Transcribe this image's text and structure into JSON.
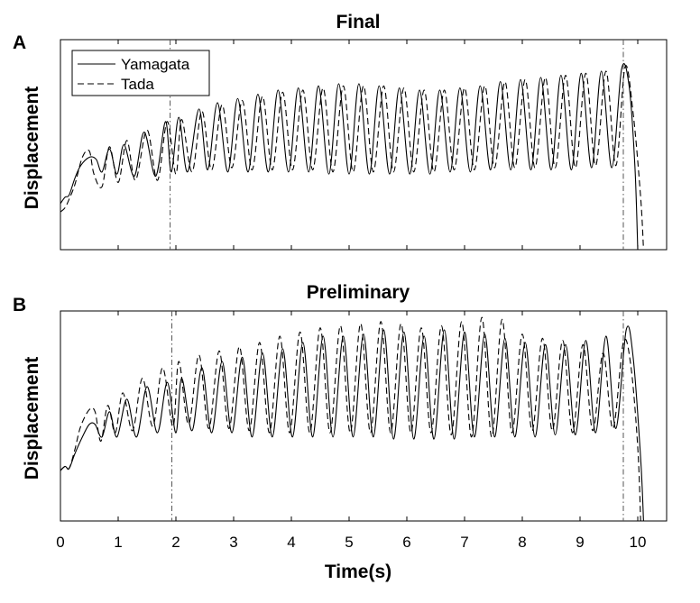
{
  "figure": {
    "xlabel": "Time(s)",
    "xticks": [
      "0",
      "1",
      "2",
      "3",
      "4",
      "5",
      "6",
      "7",
      "8",
      "9",
      "10"
    ]
  },
  "chart_data": [
    {
      "type": "line",
      "panel": "A",
      "title": "Final",
      "ylabel": "Displacement",
      "xlabel": "Time(s)",
      "xlim": [
        0,
        10.5
      ],
      "ylim": [
        0,
        1
      ],
      "vlines": [
        1.9,
        9.75
      ],
      "legend": {
        "position": "top-left",
        "entries": [
          "Yamagata",
          "Tada"
        ]
      },
      "series": [
        {
          "name": "Yamagata",
          "style": "solid",
          "x": [
            0.0,
            0.08,
            0.15,
            0.25,
            0.35,
            0.5,
            0.62,
            0.72,
            0.85,
            0.98,
            1.1,
            1.28,
            1.45,
            1.65,
            1.82,
            1.92,
            2.05,
            2.2,
            2.4,
            2.55,
            2.72,
            2.9,
            3.07,
            3.25,
            3.42,
            3.6,
            3.77,
            3.95,
            4.12,
            4.3,
            4.47,
            4.65,
            4.82,
            5.0,
            5.17,
            5.35,
            5.52,
            5.7,
            5.87,
            6.05,
            6.22,
            6.4,
            6.57,
            6.75,
            6.92,
            7.1,
            7.27,
            7.45,
            7.62,
            7.8,
            7.97,
            8.15,
            8.32,
            8.5,
            8.67,
            8.85,
            9.02,
            9.2,
            9.37,
            9.55,
            9.72,
            9.85,
            9.95,
            10.0
          ],
          "y": [
            0.22,
            0.25,
            0.26,
            0.34,
            0.4,
            0.44,
            0.43,
            0.37,
            0.48,
            0.36,
            0.5,
            0.35,
            0.56,
            0.35,
            0.61,
            0.37,
            0.63,
            0.37,
            0.67,
            0.38,
            0.7,
            0.37,
            0.72,
            0.37,
            0.74,
            0.37,
            0.76,
            0.37,
            0.77,
            0.37,
            0.78,
            0.36,
            0.79,
            0.36,
            0.79,
            0.36,
            0.78,
            0.36,
            0.77,
            0.36,
            0.76,
            0.36,
            0.76,
            0.37,
            0.77,
            0.37,
            0.78,
            0.38,
            0.8,
            0.38,
            0.81,
            0.38,
            0.82,
            0.38,
            0.83,
            0.38,
            0.84,
            0.39,
            0.85,
            0.39,
            0.86,
            0.78,
            0.4,
            0.0
          ]
        },
        {
          "name": "Tada",
          "style": "dashed",
          "x": [
            0.0,
            0.08,
            0.15,
            0.25,
            0.38,
            0.5,
            0.58,
            0.72,
            0.85,
            1.0,
            1.15,
            1.3,
            1.5,
            1.68,
            1.85,
            2.0,
            2.1,
            2.28,
            2.45,
            2.62,
            2.8,
            2.97,
            3.15,
            3.32,
            3.5,
            3.67,
            3.85,
            4.02,
            4.2,
            4.37,
            4.55,
            4.72,
            4.9,
            5.07,
            5.25,
            5.42,
            5.6,
            5.77,
            5.95,
            6.12,
            6.3,
            6.47,
            6.65,
            6.82,
            7.0,
            7.17,
            7.35,
            7.52,
            7.7,
            7.87,
            8.05,
            8.22,
            8.4,
            8.57,
            8.75,
            8.92,
            9.1,
            9.27,
            9.45,
            9.62,
            9.78,
            9.92,
            10.05,
            10.1
          ],
          "y": [
            0.18,
            0.2,
            0.24,
            0.31,
            0.44,
            0.47,
            0.36,
            0.3,
            0.49,
            0.32,
            0.52,
            0.33,
            0.57,
            0.33,
            0.61,
            0.36,
            0.62,
            0.37,
            0.66,
            0.38,
            0.69,
            0.39,
            0.71,
            0.38,
            0.73,
            0.38,
            0.75,
            0.38,
            0.76,
            0.38,
            0.77,
            0.37,
            0.78,
            0.37,
            0.78,
            0.37,
            0.78,
            0.37,
            0.77,
            0.37,
            0.76,
            0.37,
            0.76,
            0.38,
            0.77,
            0.38,
            0.78,
            0.39,
            0.8,
            0.39,
            0.81,
            0.39,
            0.82,
            0.39,
            0.83,
            0.39,
            0.84,
            0.4,
            0.85,
            0.4,
            0.87,
            0.65,
            0.25,
            0.0
          ]
        }
      ]
    },
    {
      "type": "line",
      "panel": "B",
      "title": "Preliminary",
      "ylabel": "Displacement",
      "xlabel": "Time(s)",
      "xlim": [
        0,
        10.5
      ],
      "ylim": [
        0,
        1
      ],
      "vlines": [
        1.93,
        9.75
      ],
      "series": [
        {
          "name": "Yamagata",
          "style": "solid",
          "x": [
            0.0,
            0.08,
            0.15,
            0.25,
            0.38,
            0.5,
            0.6,
            0.72,
            0.85,
            0.98,
            1.15,
            1.32,
            1.5,
            1.68,
            1.85,
            2.0,
            2.1,
            2.28,
            2.45,
            2.62,
            2.8,
            2.97,
            3.15,
            3.32,
            3.5,
            3.67,
            3.85,
            4.02,
            4.2,
            4.37,
            4.55,
            4.72,
            4.9,
            5.07,
            5.25,
            5.42,
            5.6,
            5.77,
            5.95,
            6.12,
            6.3,
            6.47,
            6.65,
            6.82,
            7.0,
            7.17,
            7.35,
            7.52,
            7.7,
            7.87,
            8.05,
            8.22,
            8.4,
            8.57,
            8.75,
            8.92,
            9.1,
            9.27,
            9.45,
            9.62,
            9.8,
            9.92,
            10.05,
            10.1
          ],
          "y": [
            0.24,
            0.26,
            0.25,
            0.32,
            0.4,
            0.46,
            0.46,
            0.4,
            0.52,
            0.4,
            0.58,
            0.4,
            0.64,
            0.42,
            0.66,
            0.42,
            0.68,
            0.43,
            0.73,
            0.42,
            0.76,
            0.42,
            0.78,
            0.4,
            0.8,
            0.4,
            0.82,
            0.4,
            0.85,
            0.4,
            0.88,
            0.4,
            0.88,
            0.4,
            0.89,
            0.4,
            0.91,
            0.39,
            0.9,
            0.39,
            0.88,
            0.39,
            0.91,
            0.39,
            0.9,
            0.4,
            0.89,
            0.4,
            0.87,
            0.4,
            0.85,
            0.4,
            0.84,
            0.41,
            0.84,
            0.41,
            0.86,
            0.42,
            0.88,
            0.44,
            0.91,
            0.78,
            0.3,
            0.0
          ]
        },
        {
          "name": "Tada",
          "style": "dashed",
          "x": [
            0.0,
            0.08,
            0.15,
            0.25,
            0.35,
            0.5,
            0.6,
            0.7,
            0.82,
            0.95,
            1.08,
            1.25,
            1.42,
            1.6,
            1.77,
            1.95,
            2.05,
            2.22,
            2.4,
            2.57,
            2.75,
            2.92,
            3.1,
            3.27,
            3.45,
            3.62,
            3.8,
            3.97,
            4.15,
            4.32,
            4.5,
            4.67,
            4.85,
            5.02,
            5.2,
            5.37,
            5.55,
            5.72,
            5.9,
            6.07,
            6.25,
            6.42,
            6.6,
            6.77,
            6.95,
            7.12,
            7.3,
            7.47,
            7.65,
            7.82,
            8.0,
            8.17,
            8.35,
            8.52,
            8.7,
            8.87,
            9.05,
            9.22,
            9.4,
            9.57,
            9.75,
            9.88,
            10.0,
            10.05
          ],
          "y": [
            0.24,
            0.26,
            0.25,
            0.34,
            0.45,
            0.53,
            0.52,
            0.38,
            0.55,
            0.42,
            0.61,
            0.43,
            0.68,
            0.45,
            0.73,
            0.45,
            0.76,
            0.46,
            0.79,
            0.44,
            0.81,
            0.44,
            0.83,
            0.43,
            0.85,
            0.42,
            0.88,
            0.42,
            0.9,
            0.42,
            0.92,
            0.42,
            0.93,
            0.42,
            0.94,
            0.42,
            0.95,
            0.42,
            0.94,
            0.42,
            0.92,
            0.42,
            0.93,
            0.41,
            0.95,
            0.4,
            0.97,
            0.4,
            0.96,
            0.42,
            0.89,
            0.43,
            0.87,
            0.43,
            0.86,
            0.42,
            0.84,
            0.43,
            0.8,
            0.44,
            0.85,
            0.74,
            0.35,
            0.0
          ]
        }
      ]
    }
  ]
}
